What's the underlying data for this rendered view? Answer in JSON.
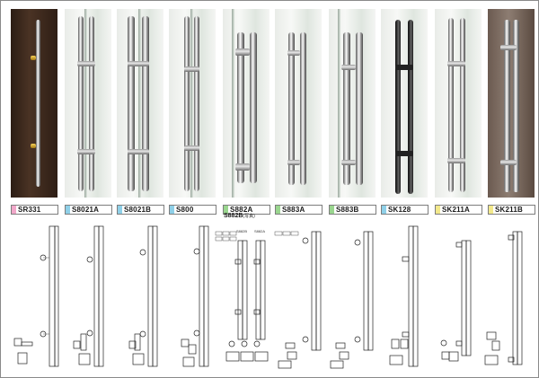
{
  "products": [
    {
      "code": "SR331",
      "swatch": "#f1a7c9"
    },
    {
      "code": "S8021A",
      "swatch": "#8fd0e8"
    },
    {
      "code": "S8021B",
      "swatch": "#8fd0e8"
    },
    {
      "code": "S800",
      "swatch": "#8fd0e8"
    },
    {
      "code": "S882A",
      "swatch": "#9ad68f"
    },
    {
      "code": "S883A",
      "swatch": "#9ad68f"
    },
    {
      "code": "S883B",
      "swatch": "#9ad68f"
    },
    {
      "code": "SK128",
      "swatch": "#8fd0e8"
    },
    {
      "code": "SK211A",
      "swatch": "#f3e98c"
    },
    {
      "code": "SK211B",
      "swatch": "#f3e98c"
    }
  ],
  "second_label": {
    "code": "S882B",
    "note": "(写真)"
  },
  "drawing_notes": {
    "s882b_title": "S882B",
    "s882a_title": "S882A"
  }
}
